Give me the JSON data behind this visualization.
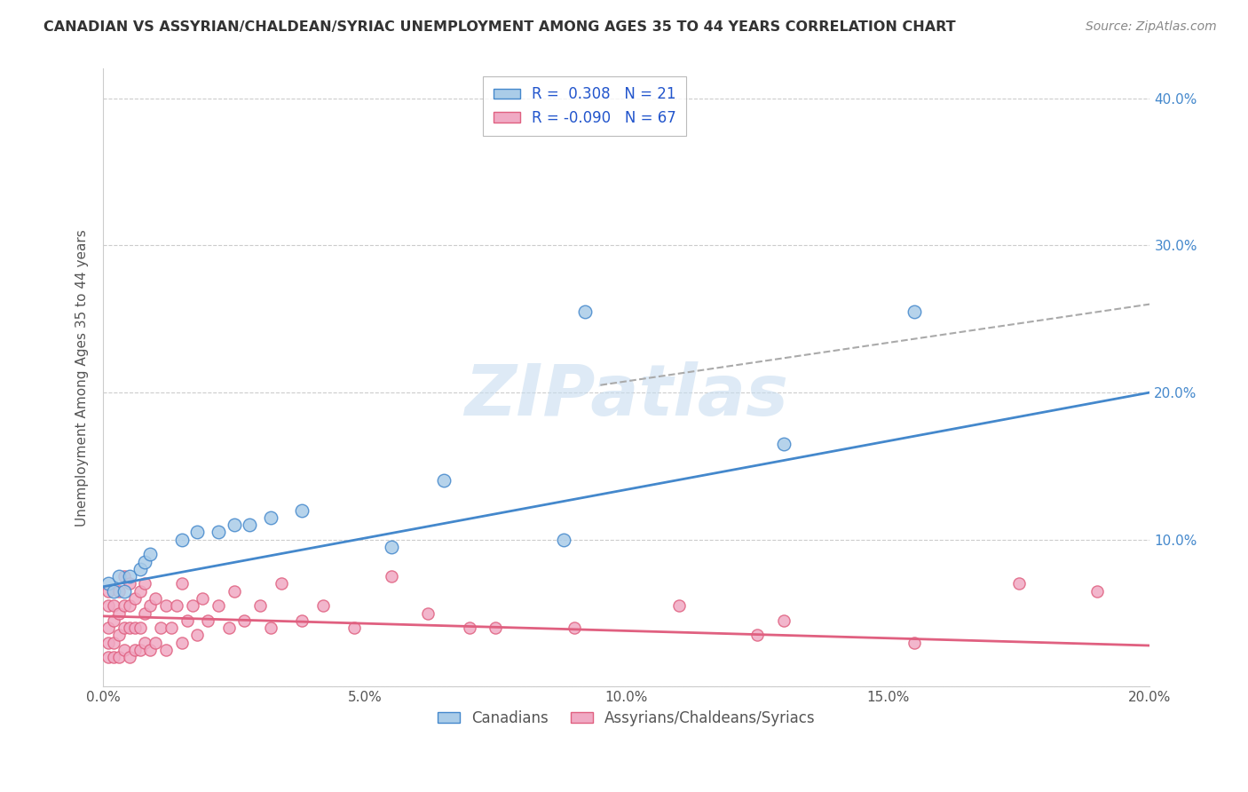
{
  "title": "CANADIAN VS ASSYRIAN/CHALDEAN/SYRIAC UNEMPLOYMENT AMONG AGES 35 TO 44 YEARS CORRELATION CHART",
  "source": "Source: ZipAtlas.com",
  "ylabel": "Unemployment Among Ages 35 to 44 years",
  "xlim": [
    0.0,
    0.2
  ],
  "ylim": [
    0.0,
    0.42
  ],
  "xticks": [
    0.0,
    0.05,
    0.1,
    0.15,
    0.2
  ],
  "xtick_labels": [
    "0.0%",
    "5.0%",
    "10.0%",
    "15.0%",
    "20.0%"
  ],
  "yticks": [
    0.0,
    0.1,
    0.2,
    0.3,
    0.4
  ],
  "ytick_labels_right": [
    "",
    "10.0%",
    "20.0%",
    "30.0%",
    "40.0%"
  ],
  "legend_r_canadian": " 0.308",
  "legend_n_canadian": "21",
  "legend_r_assyrian": "-0.090",
  "legend_n_assyrian": "67",
  "canadian_color": "#aacce8",
  "assyrian_color": "#f0aac4",
  "canadian_line_color": "#4488cc",
  "assyrian_line_color": "#e06080",
  "watermark_text": "ZIPatlas",
  "background_color": "#ffffff",
  "grid_color": "#cccccc",
  "canadians_x": [
    0.001,
    0.002,
    0.003,
    0.004,
    0.005,
    0.007,
    0.008,
    0.009,
    0.015,
    0.018,
    0.022,
    0.025,
    0.028,
    0.032,
    0.038,
    0.055,
    0.065,
    0.088,
    0.092,
    0.13,
    0.155
  ],
  "canadians_y": [
    0.07,
    0.065,
    0.075,
    0.065,
    0.075,
    0.08,
    0.085,
    0.09,
    0.1,
    0.105,
    0.105,
    0.11,
    0.11,
    0.115,
    0.12,
    0.095,
    0.14,
    0.1,
    0.255,
    0.165,
    0.255
  ],
  "assyrians_x": [
    0.001,
    0.001,
    0.001,
    0.001,
    0.001,
    0.002,
    0.002,
    0.002,
    0.002,
    0.003,
    0.003,
    0.003,
    0.003,
    0.004,
    0.004,
    0.004,
    0.004,
    0.005,
    0.005,
    0.005,
    0.005,
    0.006,
    0.006,
    0.006,
    0.007,
    0.007,
    0.007,
    0.008,
    0.008,
    0.008,
    0.009,
    0.009,
    0.01,
    0.01,
    0.011,
    0.012,
    0.012,
    0.013,
    0.014,
    0.015,
    0.015,
    0.016,
    0.017,
    0.018,
    0.019,
    0.02,
    0.022,
    0.024,
    0.025,
    0.027,
    0.03,
    0.032,
    0.034,
    0.038,
    0.042,
    0.048,
    0.055,
    0.062,
    0.07,
    0.075,
    0.09,
    0.11,
    0.125,
    0.13,
    0.155,
    0.175,
    0.19
  ],
  "assyrians_y": [
    0.02,
    0.03,
    0.04,
    0.055,
    0.065,
    0.02,
    0.03,
    0.045,
    0.055,
    0.02,
    0.035,
    0.05,
    0.065,
    0.025,
    0.04,
    0.055,
    0.075,
    0.02,
    0.04,
    0.055,
    0.07,
    0.025,
    0.04,
    0.06,
    0.025,
    0.04,
    0.065,
    0.03,
    0.05,
    0.07,
    0.025,
    0.055,
    0.03,
    0.06,
    0.04,
    0.025,
    0.055,
    0.04,
    0.055,
    0.03,
    0.07,
    0.045,
    0.055,
    0.035,
    0.06,
    0.045,
    0.055,
    0.04,
    0.065,
    0.045,
    0.055,
    0.04,
    0.07,
    0.045,
    0.055,
    0.04,
    0.075,
    0.05,
    0.04,
    0.04,
    0.04,
    0.055,
    0.035,
    0.045,
    0.03,
    0.07,
    0.065
  ],
  "canadian_trend": [
    0.068,
    0.2
  ],
  "assyrian_trend": [
    0.048,
    0.028
  ],
  "dash_line_x": [
    0.095,
    0.2
  ],
  "dash_line_y": [
    0.205,
    0.26
  ]
}
